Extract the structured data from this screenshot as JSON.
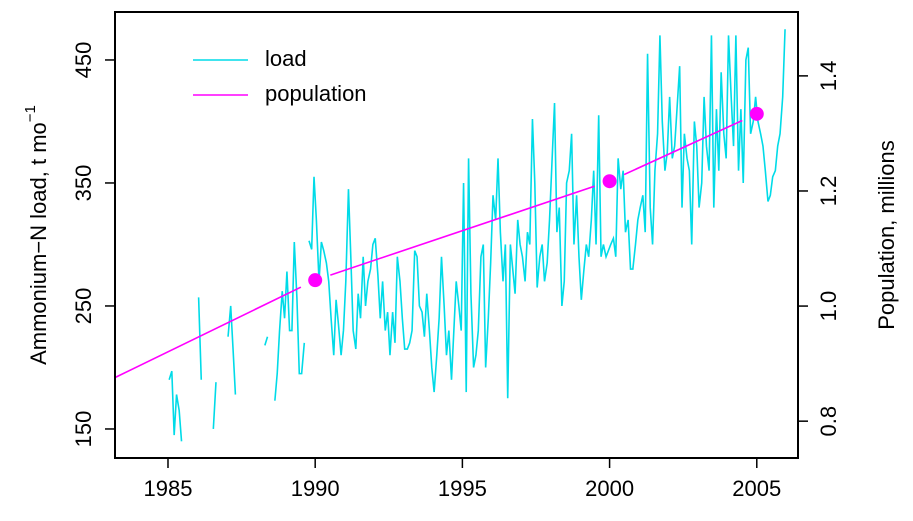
{
  "chart_data": {
    "type": "line",
    "ylabel": "Ammonium−N load,   t mo",
    "ylabel_superscript": "−1",
    "y2label": "Population, millions",
    "xlim": [
      1983.2,
      2006.4
    ],
    "xticks": [
      1985,
      1990,
      1995,
      2000,
      2005
    ],
    "ylim": [
      126.4,
      489
    ],
    "yticks": [
      150,
      250,
      350,
      450
    ],
    "y2lim": [
      0.736,
      1.511
    ],
    "y2ticks": [
      0.8,
      {
        "value": 1,
        "label": "1.0"
      },
      1.2,
      1.4
    ],
    "legend": "top-left",
    "series": [
      {
        "name": "load",
        "color": "#00dbe8",
        "x": [
          1985.04,
          1985.13,
          1985.21,
          1985.29,
          1985.38,
          1985.46,
          1985.54,
          1985.63,
          1985.71,
          1985.79,
          1985.88,
          1985.96,
          1986.04,
          1986.13,
          1986.21,
          1986.29,
          1986.38,
          1986.46,
          1986.54,
          1986.63,
          1986.71,
          1986.79,
          1986.88,
          1986.96,
          1987.04,
          1987.13,
          1987.21,
          1987.29,
          1987.38,
          1987.46,
          1987.54,
          1987.63,
          1987.71,
          1987.79,
          1987.88,
          1987.96,
          1988.04,
          1988.13,
          1988.21,
          1988.29,
          1988.38,
          1988.46,
          1988.54,
          1988.63,
          1988.71,
          1988.79,
          1988.88,
          1988.96,
          1989.04,
          1989.13,
          1989.21,
          1989.29,
          1989.38,
          1989.46,
          1989.54,
          1989.63,
          1989.71,
          1989.79,
          1989.88,
          1989.96,
          1990.04,
          1990.13,
          1990.21,
          1990.29,
          1990.38,
          1990.46,
          1990.54,
          1990.63,
          1990.71,
          1990.79,
          1990.88,
          1990.96,
          1991.04,
          1991.13,
          1991.21,
          1991.29,
          1991.38,
          1991.46,
          1991.54,
          1991.63,
          1991.71,
          1991.79,
          1991.88,
          1991.96,
          1992.04,
          1992.13,
          1992.21,
          1992.29,
          1992.38,
          1992.46,
          1992.54,
          1992.63,
          1992.71,
          1992.79,
          1992.88,
          1992.96,
          1993.04,
          1993.13,
          1993.21,
          1993.29,
          1993.38,
          1993.46,
          1993.54,
          1993.63,
          1993.71,
          1993.79,
          1993.88,
          1993.96,
          1994.04,
          1994.13,
          1994.21,
          1994.29,
          1994.38,
          1994.46,
          1994.54,
          1994.63,
          1994.71,
          1994.79,
          1994.88,
          1994.96,
          1995.04,
          1995.13,
          1995.21,
          1995.29,
          1995.38,
          1995.46,
          1995.54,
          1995.63,
          1995.71,
          1995.79,
          1995.88,
          1995.96,
          1996.04,
          1996.13,
          1996.21,
          1996.29,
          1996.38,
          1996.46,
          1996.54,
          1996.63,
          1996.71,
          1996.79,
          1996.88,
          1996.96,
          1997.04,
          1997.13,
          1997.21,
          1997.29,
          1997.38,
          1997.46,
          1997.54,
          1997.63,
          1997.71,
          1997.79,
          1997.88,
          1997.96,
          1998.04,
          1998.13,
          1998.21,
          1998.29,
          1998.38,
          1998.46,
          1998.54,
          1998.63,
          1998.71,
          1998.79,
          1998.88,
          1998.96,
          1999.04,
          1999.13,
          1999.21,
          1999.29,
          1999.38,
          1999.46,
          1999.54,
          1999.63,
          1999.71,
          1999.79,
          1999.88,
          1999.96,
          2000.04,
          2000.13,
          2000.21,
          2000.29,
          2000.38,
          2000.46,
          2000.54,
          2000.63,
          2000.71,
          2000.79,
          2000.88,
          2000.96,
          2001.04,
          2001.13,
          2001.21,
          2001.29,
          2001.38,
          2001.46,
          2001.54,
          2001.63,
          2001.71,
          2001.79,
          2001.88,
          2001.96,
          2002.04,
          2002.13,
          2002.21,
          2002.29,
          2002.38,
          2002.46,
          2002.54,
          2002.63,
          2002.71,
          2002.79,
          2002.88,
          2002.96,
          2003.04,
          2003.13,
          2003.21,
          2003.29,
          2003.38,
          2003.46,
          2003.54,
          2003.63,
          2003.71,
          2003.79,
          2003.88,
          2003.96,
          2004.04,
          2004.13,
          2004.21,
          2004.29,
          2004.38,
          2004.46,
          2004.54,
          2004.63,
          2004.71,
          2004.79,
          2004.88,
          2004.96,
          2005.04,
          2005.13,
          2005.21,
          2005.29,
          2005.38,
          2005.46,
          2005.54,
          2005.63,
          2005.71,
          2005.79,
          2005.88,
          2005.96
        ],
        "values": [
          190,
          197,
          145,
          178,
          165,
          140,
          null,
          null,
          null,
          null,
          null,
          null,
          257,
          190,
          null,
          null,
          null,
          null,
          150,
          188,
          null,
          null,
          null,
          null,
          225,
          250,
          215,
          178,
          null,
          null,
          null,
          null,
          null,
          null,
          null,
          null,
          null,
          null,
          null,
          218,
          225,
          null,
          null,
          173,
          195,
          230,
          262,
          240,
          278,
          230,
          230,
          302,
          256,
          195,
          195,
          220,
          null,
          303,
          296,
          355,
          320,
          270,
          302,
          295,
          285,
          270,
          240,
          210,
          255,
          235,
          210,
          230,
          270,
          345,
          290,
          230,
          215,
          260,
          240,
          290,
          250,
          270,
          280,
          300,
          305,
          275,
          240,
          270,
          230,
          245,
          210,
          245,
          220,
          290,
          270,
          240,
          215,
          215,
          220,
          230,
          295,
          290,
          250,
          245,
          225,
          260,
          230,
          200,
          180,
          210,
          240,
          290,
          250,
          210,
          230,
          190,
          230,
          270,
          250,
          230,
          350,
          180,
          370,
          260,
          200,
          210,
          230,
          290,
          300,
          200,
          240,
          285,
          340,
          320,
          370,
          310,
          270,
          300,
          175,
          300,
          280,
          260,
          320,
          300,
          290,
          270,
          310,
          300,
          402,
          350,
          265,
          290,
          300,
          270,
          285,
          320,
          365,
          415,
          310,
          330,
          250,
          270,
          350,
          360,
          390,
          300,
          340,
          290,
          255,
          280,
          300,
          290,
          320,
          360,
          300,
          405,
          290,
          300,
          290,
          295,
          300,
          305,
          290,
          370,
          345,
          360,
          310,
          320,
          280,
          280,
          300,
          320,
          330,
          340,
          310,
          455,
          330,
          300,
          360,
          390,
          470,
          400,
          360,
          375,
          420,
          370,
          380,
          410,
          445,
          330,
          390,
          370,
          360,
          300,
          400,
          380,
          330,
          350,
          420,
          380,
          360,
          470,
          330,
          410,
          360,
          440,
          390,
          370,
          470,
          420,
          380,
          470,
          360,
          410,
          350,
          450,
          460,
          390,
          400,
          420,
          400,
          390,
          380,
          360,
          335,
          340,
          355,
          360,
          380,
          390,
          420,
          475
        ]
      },
      {
        "name": "population",
        "color": "#ff00ff",
        "axis": "y2",
        "x": [
          1981,
          1990,
          2000,
          2005
        ],
        "values": [
          0.821,
          1.045,
          1.217,
          1.334
        ]
      }
    ]
  }
}
